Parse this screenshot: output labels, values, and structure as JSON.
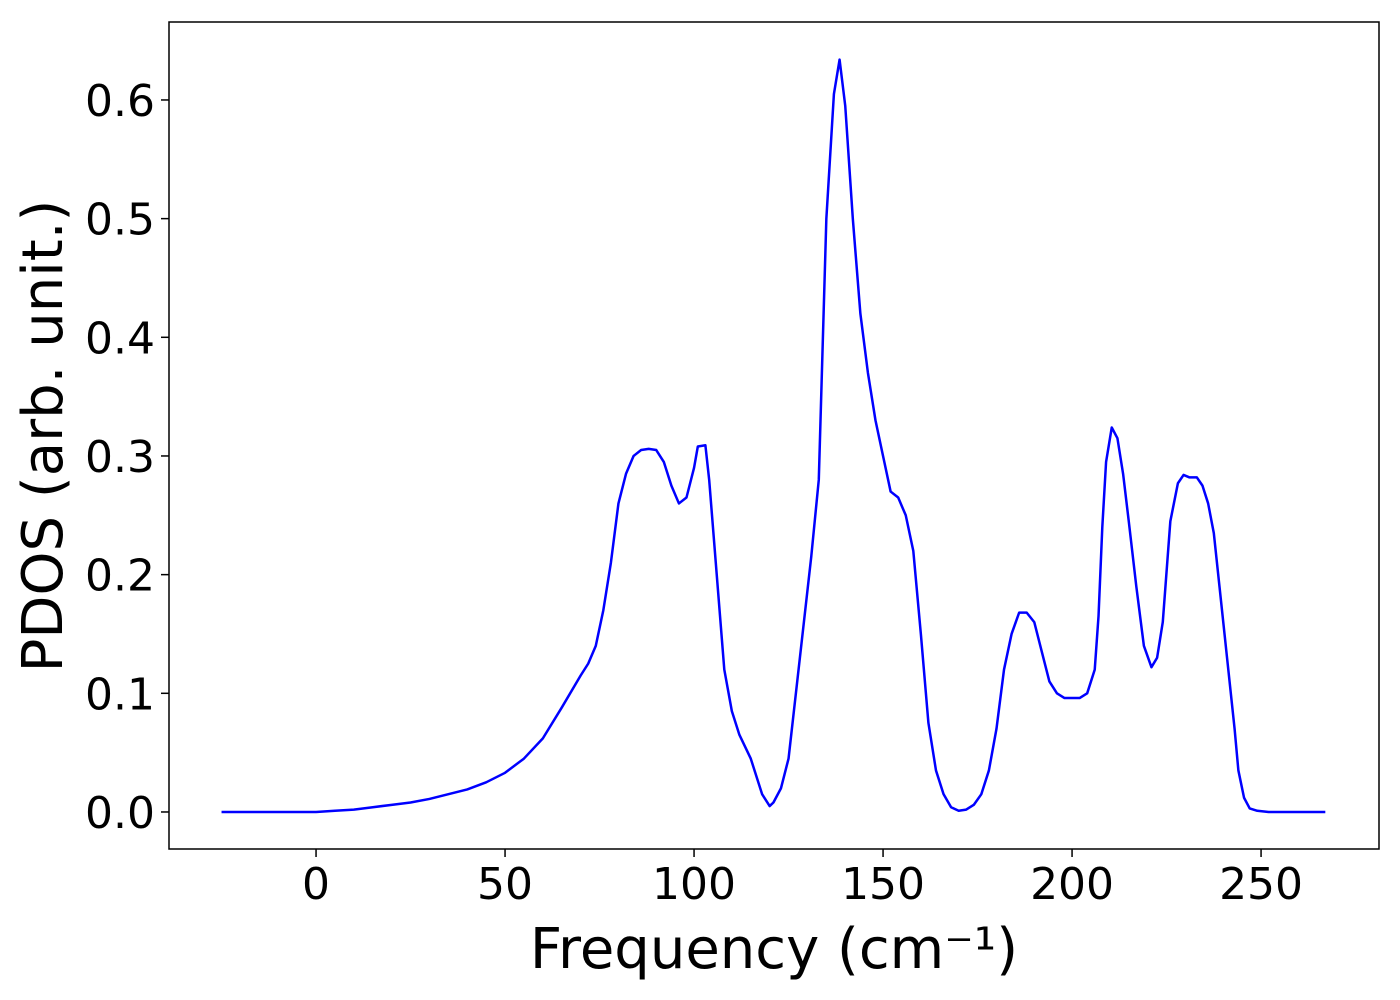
{
  "chart_data": {
    "type": "line",
    "xlabel": "Frequency (cm⁻¹)",
    "ylabel": "PDOS (arb. unit.)",
    "xlim": [
      -38.9,
      281.2
    ],
    "ylim": [
      -0.0312,
      0.6657
    ],
    "xticks": [
      0,
      50,
      100,
      150,
      200,
      250
    ],
    "yticks": [
      {
        "value": 0,
        "label": "0.0"
      },
      0.1,
      0.2,
      0.3,
      0.4,
      0.5,
      0.6
    ],
    "grid": false,
    "series": [
      {
        "color": "#0000ff",
        "x": [
          -25,
          -15,
          -5,
          0,
          5,
          10,
          15,
          20,
          25,
          30,
          35,
          40,
          45,
          50,
          55,
          60,
          65,
          70,
          72,
          74,
          76,
          78,
          80,
          82,
          84,
          86,
          88,
          90,
          92,
          94,
          96,
          98,
          100,
          101,
          103,
          104,
          106,
          108,
          110,
          112,
          115,
          118,
          120,
          121,
          123,
          125,
          128,
          131,
          133,
          135,
          137,
          138.5,
          140,
          142,
          144,
          146,
          148,
          150,
          152,
          154,
          156,
          158,
          160,
          162,
          164,
          166,
          168,
          170,
          172,
          174,
          176,
          178,
          180,
          182,
          184,
          186,
          188,
          190,
          192,
          194,
          196,
          198,
          202,
          204,
          206,
          207,
          208,
          209,
          210.5,
          212,
          213.5,
          215,
          217,
          219,
          221,
          222.5,
          224,
          226,
          228,
          229.5,
          231,
          233,
          234.5,
          236,
          237.5,
          239,
          241,
          243,
          244,
          245.5,
          247,
          249,
          252,
          267
        ],
        "values": [
          0,
          0,
          0,
          0,
          0.001,
          0.002,
          0.004,
          0.006,
          0.008,
          0.011,
          0.015,
          0.019,
          0.025,
          0.033,
          0.045,
          0.062,
          0.088,
          0.115,
          0.125,
          0.14,
          0.17,
          0.21,
          0.26,
          0.285,
          0.3,
          0.305,
          0.306,
          0.305,
          0.295,
          0.275,
          0.26,
          0.265,
          0.29,
          0.308,
          0.309,
          0.28,
          0.2,
          0.12,
          0.085,
          0.065,
          0.045,
          0.015,
          0.005,
          0.008,
          0.02,
          0.045,
          0.13,
          0.215,
          0.28,
          0.5,
          0.605,
          0.634,
          0.595,
          0.5,
          0.42,
          0.37,
          0.33,
          0.3,
          0.27,
          0.265,
          0.25,
          0.22,
          0.15,
          0.075,
          0.035,
          0.015,
          0.004,
          0.001,
          0.002,
          0.006,
          0.015,
          0.035,
          0.07,
          0.12,
          0.15,
          0.168,
          0.168,
          0.16,
          0.135,
          0.11,
          0.1,
          0.096,
          0.096,
          0.1,
          0.12,
          0.165,
          0.24,
          0.295,
          0.324,
          0.315,
          0.285,
          0.245,
          0.19,
          0.14,
          0.122,
          0.13,
          0.16,
          0.245,
          0.277,
          0.284,
          0.282,
          0.282,
          0.275,
          0.26,
          0.235,
          0.19,
          0.13,
          0.07,
          0.035,
          0.012,
          0.003,
          0.001,
          0,
          0
        ]
      }
    ]
  }
}
